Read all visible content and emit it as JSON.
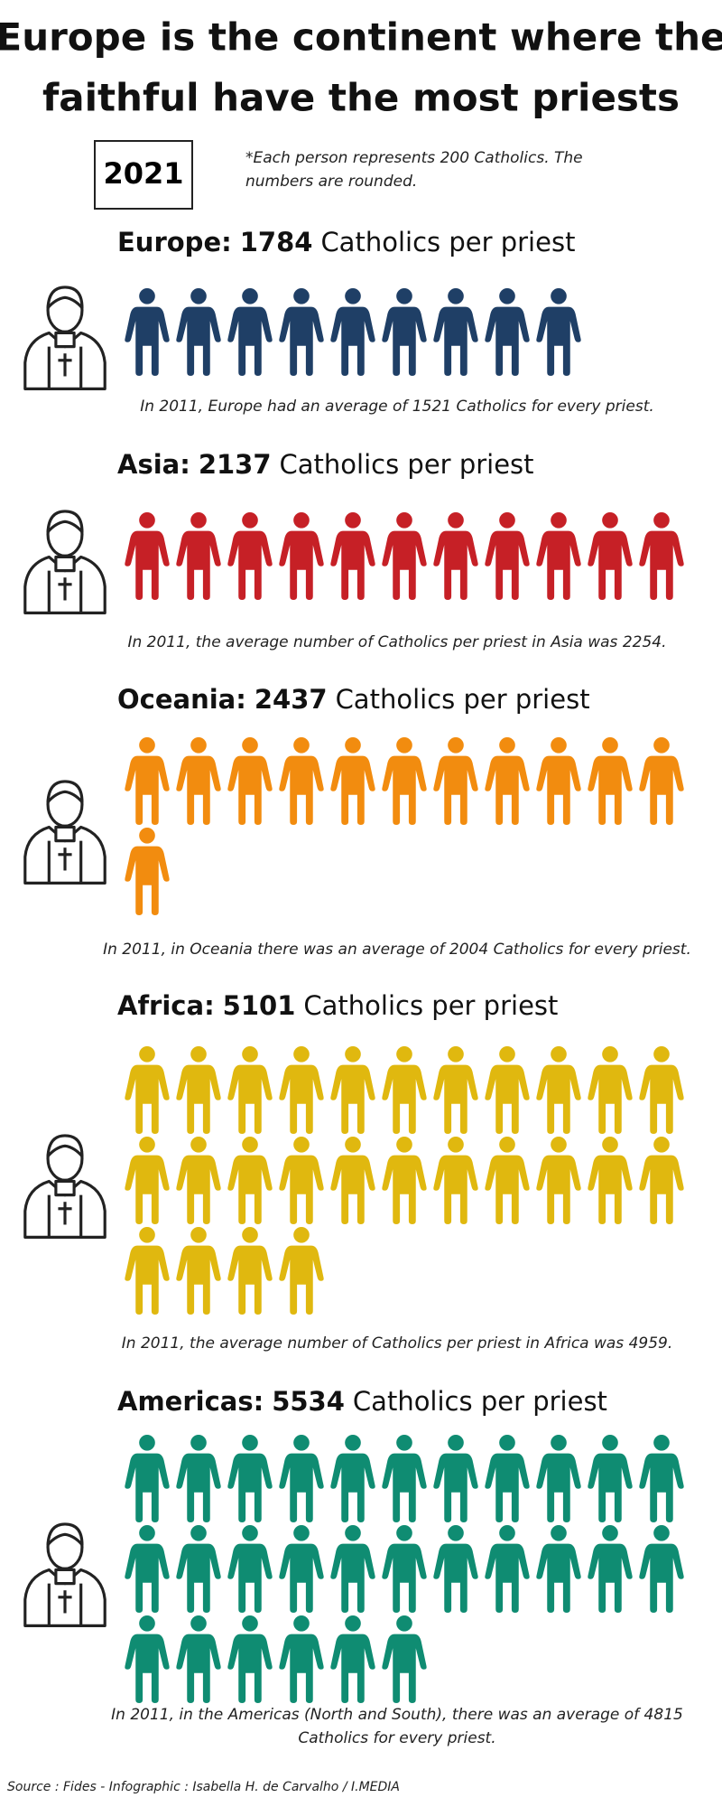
{
  "title_lines": [
    "Europe is the continent where the",
    "faithful have the most priests"
  ],
  "year": "2021",
  "note": "*Each person represents 200 Catholics. The numbers are rounded.",
  "sections": [
    {
      "region": "Europe:",
      "value": 1784,
      "unit": "Catholics per priest",
      "persons": 9,
      "color": "#1f3f66",
      "note": "In 2011, Europe had an average of 1521 Catholics for every priest."
    },
    {
      "region": "Asia:",
      "value": 2137,
      "unit": "Catholics per priest",
      "persons": 11,
      "color": "#c62026",
      "note": "In 2011, the average number of Catholics per priest in Asia was 2254."
    },
    {
      "region": "Oceania:",
      "value": 2437,
      "unit": "Catholics per priest",
      "persons": 12,
      "color": "#f28c0f",
      "note": "In 2011, in Oceania there was an average of 2004 Catholics for every priest."
    },
    {
      "region": "Africa:",
      "value": 5101,
      "unit": "Catholics per priest",
      "persons": 26,
      "color": "#e0b80f",
      "note": "In 2011, the average number of Catholics per priest in Africa was 4959."
    },
    {
      "region": "Americas:",
      "value": 5534,
      "unit": "Catholics per priest",
      "persons": 28,
      "color": "#0f8c72",
      "note": "In 2011, in the Americas (North and South), there was an average of 4815 Catholics for every priest."
    }
  ],
  "source": "Source : Fides - Infographic : Isabella H. de Carvalho / I.MEDIA"
}
